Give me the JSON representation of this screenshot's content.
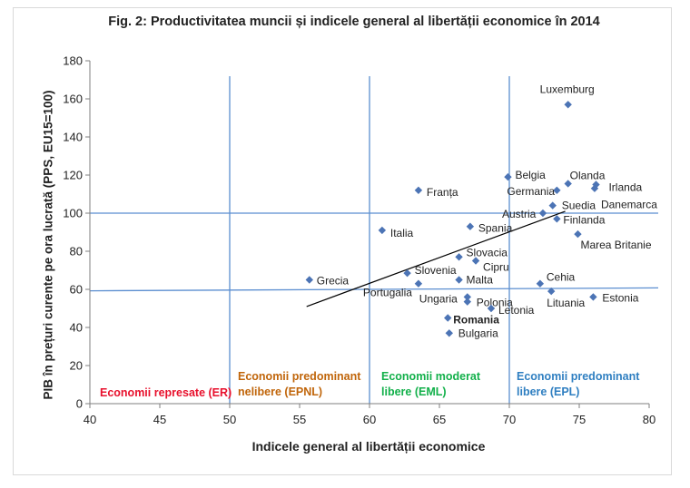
{
  "chart_data": {
    "type": "scatter",
    "title": "Fig. 2: Productivitatea muncii și indicele general al libertății economice în 2014",
    "xlabel": "Indicele general al libertății economice",
    "ylabel": "PIB în prețuri curente pe ora lucrată (PPS, EU15=100)",
    "xlim": [
      40,
      80
    ],
    "ylim": [
      0,
      180
    ],
    "xticks": [
      40,
      45,
      50,
      55,
      60,
      65,
      70,
      75,
      80
    ],
    "yticks": [
      0,
      20,
      40,
      60,
      80,
      100,
      120,
      140,
      160,
      180
    ],
    "grid": false,
    "points": [
      {
        "label": "Luxemburg",
        "x": 74.2,
        "y": 157,
        "highlight": false
      },
      {
        "label": "Belgia",
        "x": 69.9,
        "y": 119,
        "highlight": false
      },
      {
        "label": "Olanda",
        "x": 74.2,
        "y": 115.5,
        "highlight": false
      },
      {
        "label": "Irlanda",
        "x": 76.2,
        "y": 115,
        "highlight": false
      },
      {
        "label": "Danemarca",
        "x": 76.1,
        "y": 113,
        "highlight": false
      },
      {
        "label": "Germania",
        "x": 73.4,
        "y": 112,
        "highlight": false
      },
      {
        "label": "Franța",
        "x": 63.5,
        "y": 112,
        "highlight": false
      },
      {
        "label": "Suedia",
        "x": 73.1,
        "y": 104,
        "highlight": false
      },
      {
        "label": "Austria",
        "x": 72.4,
        "y": 100,
        "highlight": false
      },
      {
        "label": "Finlanda",
        "x": 73.4,
        "y": 97,
        "highlight": false
      },
      {
        "label": "Spania",
        "x": 67.2,
        "y": 93,
        "highlight": false
      },
      {
        "label": "Italia",
        "x": 60.9,
        "y": 91,
        "highlight": false
      },
      {
        "label": "Marea Britanie",
        "x": 74.9,
        "y": 89,
        "highlight": false
      },
      {
        "label": "Slovacia",
        "x": 66.4,
        "y": 77,
        "highlight": false
      },
      {
        "label": "Cipru",
        "x": 67.6,
        "y": 75,
        "highlight": false
      },
      {
        "label": "Slovenia",
        "x": 62.7,
        "y": 68.5,
        "highlight": false
      },
      {
        "label": "Grecia",
        "x": 55.7,
        "y": 65,
        "highlight": false
      },
      {
        "label": "Malta",
        "x": 66.4,
        "y": 65,
        "highlight": false
      },
      {
        "label": "Portugalia",
        "x": 63.5,
        "y": 63,
        "highlight": false
      },
      {
        "label": "Cehia",
        "x": 72.2,
        "y": 63,
        "highlight": false
      },
      {
        "label": "Lituania",
        "x": 73.0,
        "y": 59,
        "highlight": false
      },
      {
        "label": "Ungaria",
        "x": 67.0,
        "y": 56,
        "highlight": false
      },
      {
        "label": "Estonia",
        "x": 76.0,
        "y": 56,
        "highlight": false
      },
      {
        "label": "Polonia",
        "x": 67.0,
        "y": 53.5,
        "highlight": false
      },
      {
        "label": "Letonia",
        "x": 68.7,
        "y": 50,
        "highlight": false
      },
      {
        "label": "Romania",
        "x": 65.6,
        "y": 45,
        "highlight": true
      },
      {
        "label": "Bulgaria",
        "x": 65.7,
        "y": 37,
        "highlight": false
      }
    ],
    "trendline": {
      "x": [
        55.5,
        74
      ],
      "y": [
        51,
        101
      ]
    },
    "reference_lines": {
      "vertical": [
        50,
        60,
        70
      ],
      "horizontal": [
        60,
        100
      ]
    },
    "zones": [
      {
        "label_lines": [
          "Economii represate (ER)"
        ],
        "color": "#e8112d"
      },
      {
        "label_lines": [
          "Economii predominant",
          "nelibere (EPNL)"
        ],
        "color": "#c0650a"
      },
      {
        "label_lines": [
          "Economii moderat",
          "libere (EML)"
        ],
        "color": "#12b04a"
      },
      {
        "label_lines": [
          "Economii predominant",
          "libere (EPL)"
        ],
        "color": "#2f7fc1"
      }
    ],
    "colors": {
      "marker": "#4c74b5",
      "reference": "#5b8ed0",
      "highlight_label": "#e8112d",
      "trend": "#000000"
    }
  }
}
